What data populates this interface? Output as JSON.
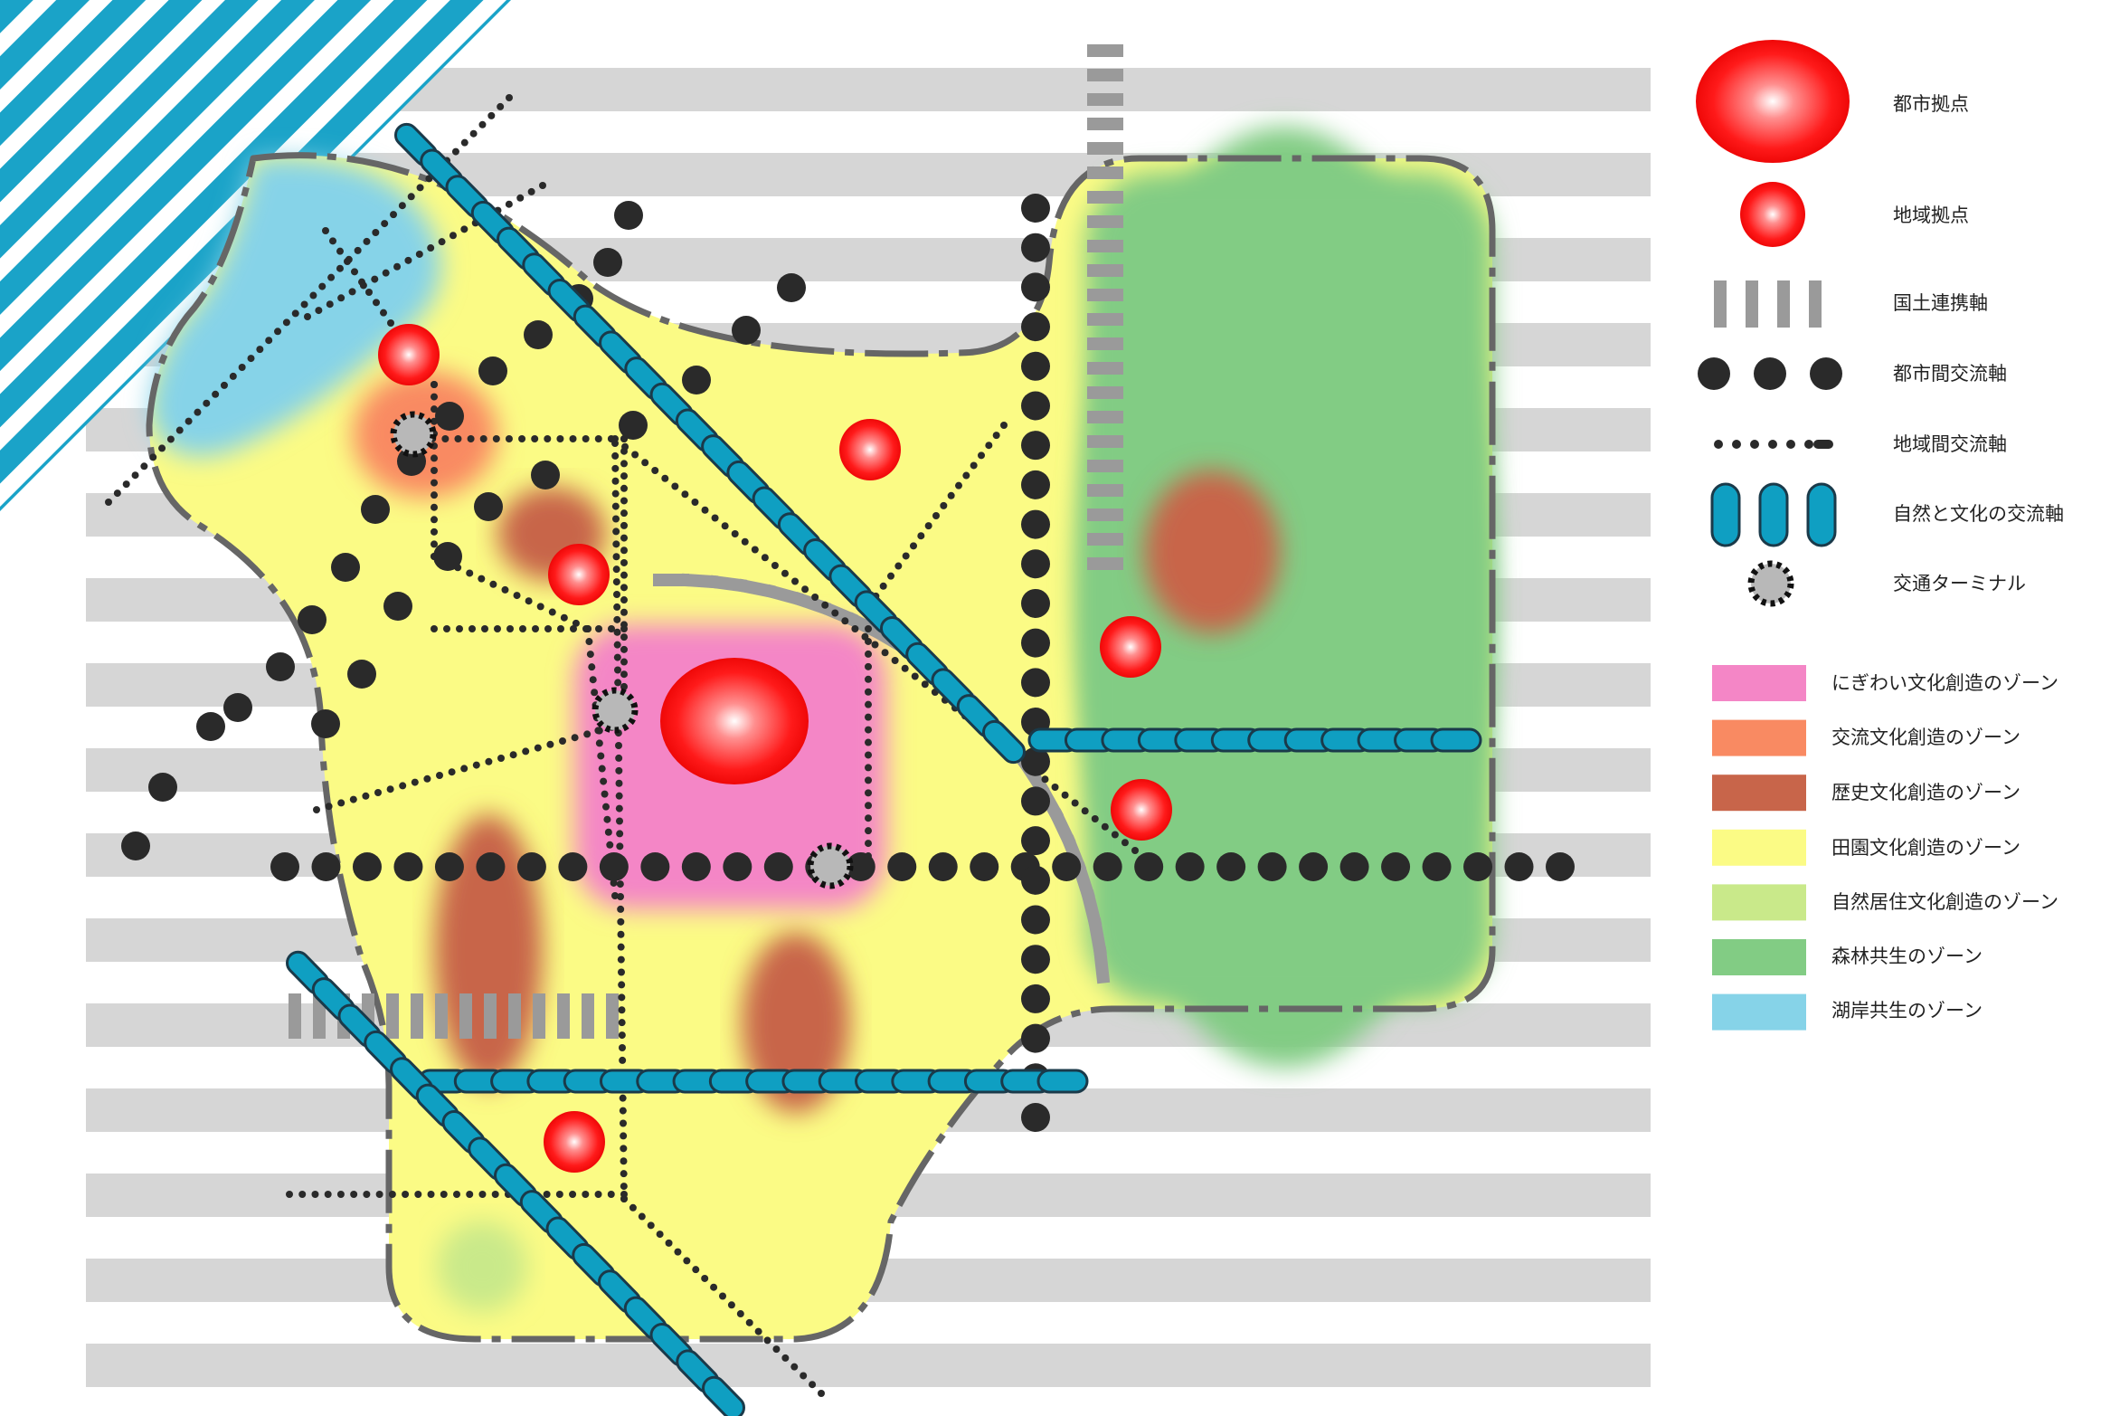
{
  "legend": {
    "symbols": [
      {
        "key": "city_hub",
        "label": "都市拠点",
        "icon": "large-red-circle-icon"
      },
      {
        "key": "regional_hub",
        "label": "地域拠点",
        "icon": "small-red-circle-icon"
      },
      {
        "key": "national_axis",
        "label": "国土連携軸",
        "icon": "gray-dash-bars-icon"
      },
      {
        "key": "intercity_axis",
        "label": "都市間交流軸",
        "icon": "large-dots-icon"
      },
      {
        "key": "interregional_axis",
        "label": "地域間交流軸",
        "icon": "small-dots-icon"
      },
      {
        "key": "nature_culture_axis",
        "label": "自然と文化の交流軸",
        "icon": "teal-capsules-icon"
      },
      {
        "key": "terminal",
        "label": "交通ターミナル",
        "icon": "dashed-ring-icon"
      }
    ],
    "zones": [
      {
        "label": "にぎわい文化創造のゾーン",
        "color": "#f486c6"
      },
      {
        "label": "交流文化創造のゾーン",
        "color": "#f98a62"
      },
      {
        "label": "歴史文化創造のゾーン",
        "color": "#c8654a"
      },
      {
        "label": "田園文化創造のゾーン",
        "color": "#fbfb85"
      },
      {
        "label": "自然居住文化創造のゾーン",
        "color": "#c9e98a"
      },
      {
        "label": "森林共生のゾーン",
        "color": "#82cc84"
      },
      {
        "label": "湖岸共生のゾーン",
        "color": "#86d3e8"
      }
    ]
  },
  "colors": {
    "hub_red": "#ff1a1a",
    "axis_teal": "#0f9fc2",
    "axis_gray": "#9a9a9a",
    "dot_dark": "#2a2a2a",
    "lake_stripe": "#1aa3c8",
    "background_stripe": "#d6d6d6",
    "boundary": "#666666"
  }
}
